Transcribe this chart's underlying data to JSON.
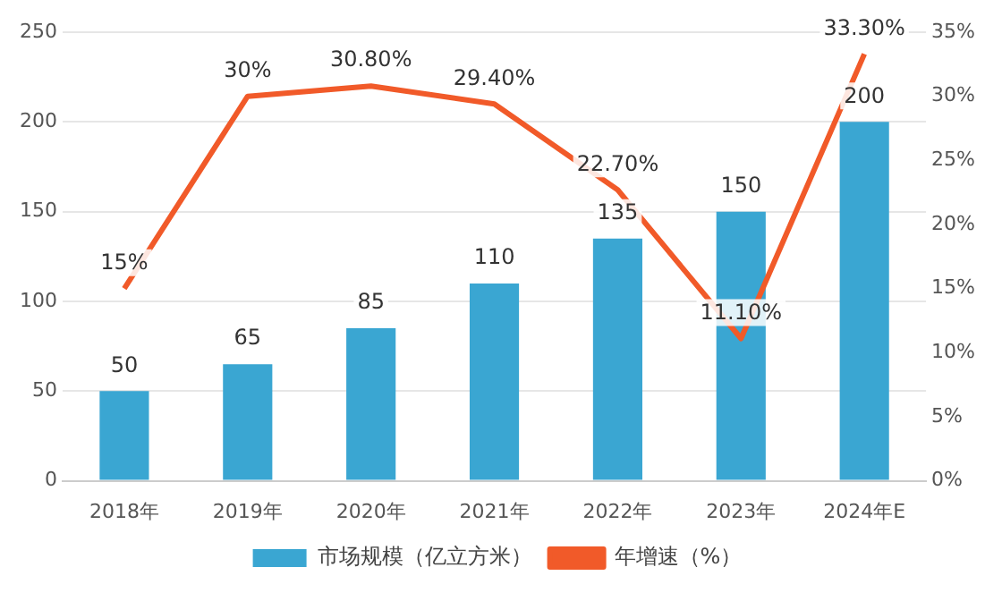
{
  "chart_data": {
    "type": "bar",
    "categories": [
      "2018年",
      "2019年",
      "2020年",
      "2021年",
      "2022年",
      "2023年",
      "2024年E"
    ],
    "series": [
      {
        "name": "市场规模（亿立方米）",
        "color": "#3aa6d2",
        "values": [
          50,
          65,
          85,
          110,
          135,
          150,
          200
        ],
        "value_labels": [
          "50",
          "65",
          "85",
          "110",
          "135",
          "150",
          "200"
        ]
      },
      {
        "name": "年增速（%）",
        "type": "line",
        "axis": "y2",
        "color": "#f15a29",
        "values": [
          15,
          30,
          30.8,
          29.4,
          22.7,
          11.1,
          33.3
        ],
        "value_labels": [
          "15%",
          "30%",
          "30.80%",
          "29.40%",
          "22.70%",
          "11.10%",
          "33.30%"
        ]
      }
    ],
    "ylim": [
      0,
      250
    ],
    "yticks": [
      0,
      50,
      100,
      150,
      200,
      250
    ],
    "y2lim": [
      0,
      35
    ],
    "y2ticks": [
      {
        "value": 0,
        "label": "0%"
      },
      {
        "value": 5,
        "label": "5%"
      },
      {
        "value": 10,
        "label": "10%"
      },
      {
        "value": 15,
        "label": "15%"
      },
      {
        "value": 20,
        "label": "20%"
      },
      {
        "value": 25,
        "label": "25%"
      },
      {
        "value": 30,
        "label": "30%"
      },
      {
        "value": 35,
        "label": "35%"
      }
    ],
    "grid": "y",
    "legend": "bottom",
    "marker": "none",
    "line_style": "solid"
  }
}
